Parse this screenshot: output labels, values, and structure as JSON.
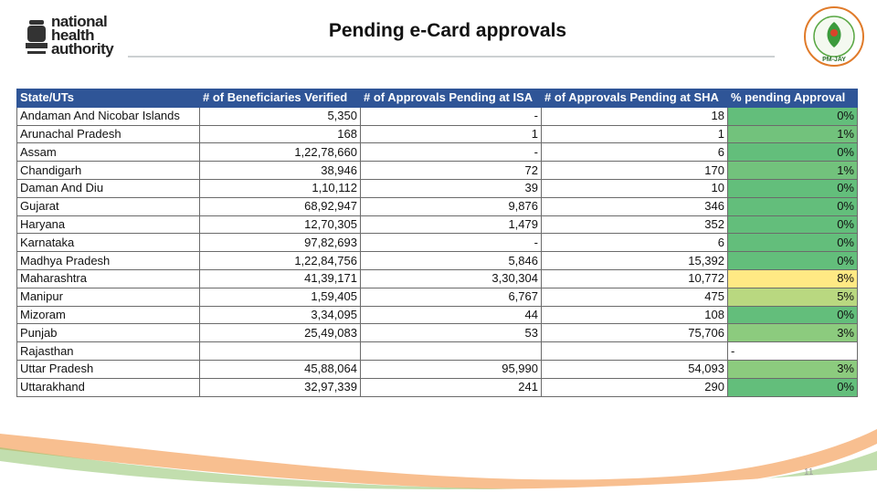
{
  "header": {
    "logo_lines": [
      "national",
      "health",
      "authority"
    ],
    "title": "Pending e-Card approvals",
    "right_logo": "PM-JAY"
  },
  "table": {
    "columns": [
      "State/UTs",
      "# of Beneficiaries Verified",
      "# of Approvals Pending at ISA",
      "# of Approvals Pending at SHA",
      "% pending Approval"
    ],
    "rows": [
      [
        "Andaman And Nicobar Islands",
        "5,350",
        "-",
        "18",
        "0%"
      ],
      [
        "Arunachal Pradesh",
        "168",
        "1",
        "1",
        "1%"
      ],
      [
        "Assam",
        "1,22,78,660",
        "-",
        "6",
        "0%"
      ],
      [
        "Chandigarh",
        "38,946",
        "72",
        "170",
        "1%"
      ],
      [
        "Daman And Diu",
        "1,10,112",
        "39",
        "10",
        "0%"
      ],
      [
        "Gujarat",
        "68,92,947",
        "9,876",
        "346",
        "0%"
      ],
      [
        "Haryana",
        "12,70,305",
        "1,479",
        "352",
        "0%"
      ],
      [
        "Karnataka",
        "97,82,693",
        "-",
        "6",
        "0%"
      ],
      [
        "Madhya Pradesh",
        "1,22,84,756",
        "5,846",
        "15,392",
        "0%"
      ],
      [
        "Maharashtra",
        "41,39,171",
        "3,30,304",
        "10,772",
        "8%"
      ],
      [
        "Manipur",
        "1,59,405",
        "6,767",
        "475",
        "5%"
      ],
      [
        "Mizoram",
        "3,34,095",
        "44",
        "108",
        "0%"
      ],
      [
        "Punjab",
        "25,49,083",
        "53",
        "75,706",
        "3%"
      ],
      [
        "Rajasthan",
        null,
        null,
        null,
        "-"
      ],
      [
        "Uttar Pradesh",
        "45,88,064",
        "95,990",
        "54,093",
        "3%"
      ],
      [
        "Uttarakhand",
        "32,97,339",
        "241",
        "290",
        "0%"
      ]
    ],
    "pct_colors": [
      "#63be7b",
      "#72c27c",
      "#63be7b",
      "#72c27c",
      "#63be7b",
      "#63be7b",
      "#63be7b",
      "#63be7b",
      "#63be7b",
      "#ffe984",
      "#b9d880",
      "#63be7b",
      "#8ccb7e",
      null,
      "#8ccb7e",
      "#63be7b"
    ]
  },
  "footer": {
    "page": "11"
  }
}
